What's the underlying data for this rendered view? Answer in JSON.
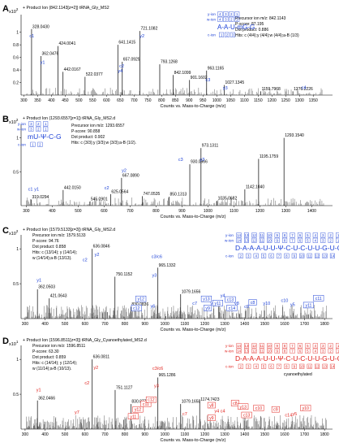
{
  "chart_data": [
    {
      "type": "bar",
      "panel_label": "A",
      "exponent": "x10",
      "exponent_power": "2",
      "title": "+ Product Ion (842.1143[z=2]) tRNA_Gly_MS2",
      "xlabel": "Counts vs. Mass-to-Charge (m/z)",
      "ylabel": "",
      "xlim": [
        290,
        1420
      ],
      "ylim": [
        0,
        1.28
      ],
      "yticks": [
        0.2,
        0.4,
        0.6,
        0.8,
        1.0
      ],
      "xticks": [
        300,
        350,
        400,
        450,
        500,
        550,
        600,
        650,
        700,
        750,
        800,
        850,
        900,
        950,
        1000,
        1050,
        1100,
        1150,
        1200,
        1250,
        1300,
        1350
      ],
      "tick_color": "#000",
      "peaks": [
        {
          "mz": 328.043,
          "y": 1.05,
          "label": "328.0430"
        },
        {
          "mz": 362.0476,
          "y": 0.62,
          "label": "362.0476"
        },
        {
          "mz": 424.0041,
          "y": 0.78,
          "label": "424.0041"
        },
        {
          "mz": 442.0167,
          "y": 0.37,
          "label": "442.0167"
        },
        {
          "mz": 522.0377,
          "y": 0.29,
          "label": "522.0377"
        },
        {
          "mz": 641.1415,
          "y": 0.8,
          "label": "641.1415"
        },
        {
          "mz": 657.0925,
          "y": 0.53,
          "label": "657.0925"
        },
        {
          "mz": 721.1082,
          "y": 1.02,
          "label": "721.1082"
        },
        {
          "mz": 793.1268,
          "y": 0.49,
          "label": "793.1268"
        },
        {
          "mz": 842.1099,
          "y": 0.32,
          "label": "842.1099"
        },
        {
          "mz": 901.1602,
          "y": 0.24,
          "label": "901.1602"
        },
        {
          "mz": 963.1165,
          "y": 0.39,
          "label": "963.1165"
        },
        {
          "mz": 1027.1345,
          "y": 0.16,
          "label": "1027.1345"
        },
        {
          "mz": 1159.7968,
          "y": 0.06,
          "label": "1159.7968"
        },
        {
          "mz": 1276.2226,
          "y": 0.06,
          "label": "1276.2226"
        }
      ],
      "ion_labels": [
        {
          "mz": 329,
          "y": 0.92,
          "label": "c1"
        },
        {
          "mz": 368,
          "y": 0.5,
          "label": "y1"
        },
        {
          "mz": 655,
          "y": 0.44,
          "label": "c2"
        },
        {
          "mz": 650,
          "y": 0.36,
          "label": "y4"
        },
        {
          "mz": 729,
          "y": 0.92,
          "label": "y2"
        },
        {
          "mz": 968,
          "y": 0.22,
          "label": "c3"
        },
        {
          "mz": 1031,
          "y": 0.09,
          "label": "y3"
        },
        {
          "mz": 1316,
          "y": 0.1,
          "label": "c4"
        }
      ],
      "info": [
        "Precursor ion m/z: 842.1143",
        "P-score: 87.195",
        "Dot product: 0.886",
        "Hits: c (4/4);y (4/4);w (4/4);a-B (1/3)"
      ],
      "sequence": {
        "rows": [
          {
            "label": "y-ion",
            "values": [
              "4",
              "3",
              "2",
              "1"
            ]
          },
          {
            "label": "w-ion",
            "values": [
              "4",
              "3",
              "2",
              "1"
            ]
          },
          {
            "label": "c-ion",
            "values": [
              "1",
              "2",
              "3"
            ]
          }
        ],
        "residues": "A-A-U-m G-G"
      }
    },
    {
      "type": "bar",
      "panel_label": "B",
      "exponent": "x10",
      "exponent_power": "2",
      "title": "+ Product Ion (1293.6557[z=1]) tRNA_Gly_MS2.d",
      "xlabel": "Counts vs. Mass-to-Charge (m/z)",
      "ylabel": "",
      "xlim": [
        280,
        1480
      ],
      "ylim": [
        0,
        1.2
      ],
      "yticks": [
        0.5,
        1
      ],
      "xticks": [
        300,
        400,
        500,
        600,
        700,
        800,
        900,
        1000,
        1100,
        1200,
        1300,
        1400
      ],
      "tick_color": "#000",
      "peaks": [
        {
          "mz": 319.0294,
          "y": 0.09,
          "label": "319.0294"
        },
        {
          "mz": 442.015,
          "y": 0.23,
          "label": "442.0150"
        },
        {
          "mz": 545.0901,
          "y": 0.06,
          "label": "545.0901"
        },
        {
          "mz": 625.0564,
          "y": 0.17,
          "label": "625.0564"
        },
        {
          "mz": 667.089,
          "y": 0.41,
          "label": "667.0890"
        },
        {
          "mz": 747.0535,
          "y": 0.14,
          "label": "747.0535"
        },
        {
          "mz": 850.1313,
          "y": 0.13,
          "label": "850.1313"
        },
        {
          "mz": 930.0966,
          "y": 0.61,
          "label": "930.0966"
        },
        {
          "mz": 973.1311,
          "y": 0.85,
          "label": "973.1311"
        },
        {
          "mz": 1035.0682,
          "y": 0.07,
          "label": "1035.0682"
        },
        {
          "mz": 1142.104,
          "y": 0.24,
          "label": "1142.1040"
        },
        {
          "mz": 1195.1759,
          "y": 0.69,
          "label": "1195.1759"
        },
        {
          "mz": 1293.154,
          "y": 1.0,
          "label": "1293.1540"
        }
      ],
      "ion_labels": [
        {
          "mz": 316,
          "y": 0.22,
          "label": "c1"
        },
        {
          "mz": 340,
          "y": 0.22,
          "label": "y1"
        },
        {
          "mz": 610,
          "y": 0.24,
          "label": "c2"
        },
        {
          "mz": 677,
          "y": 0.5,
          "label": "y2"
        },
        {
          "mz": 895,
          "y": 0.66,
          "label": "c3"
        },
        {
          "mz": 978,
          "y": 0.66,
          "label": "y3"
        }
      ],
      "info": [
        "Precursor ion m/z: 1293.6557",
        "P-score: 90.858",
        "Dot product: 0.902",
        "Hits: c (3/3);y (3/3);w (3/3);a-B (1/2)."
      ],
      "sequence": {
        "rows": [
          {
            "label": "y-ion",
            "values": [
              "3",
              "2",
              "1"
            ]
          },
          {
            "label": "w-ion",
            "values": [
              "3",
              "2",
              "1"
            ]
          },
          {
            "label": "c-ion",
            "values": [
              "1",
              "2"
            ]
          }
        ],
        "residues": "mU-Ψ-C-G"
      }
    },
    {
      "type": "bar",
      "panel_label": "C",
      "exponent": "x10",
      "exponent_power": "2",
      "title": "+ Product Ion (1579.5133[z=3]) tRNA_Gly_MS2.d",
      "xlabel": "Counts vs. Mass-to-Charge (m/z)",
      "ylabel": "",
      "xlim": [
        280,
        1840
      ],
      "ylim": [
        0,
        1.2
      ],
      "yticks": [
        0.5,
        1
      ],
      "xticks": [
        300,
        400,
        500,
        600,
        700,
        800,
        900,
        1000,
        1100,
        1200,
        1300,
        1400,
        1500,
        1600,
        1700,
        1800
      ],
      "tick_color": "#000",
      "peaks": [
        {
          "mz": 362.0503,
          "y": 0.42,
          "label": "362.0503"
        },
        {
          "mz": 421.0643,
          "y": 0.29,
          "label": "421.0643"
        },
        {
          "mz": 636.0846,
          "y": 1.0,
          "label": "636.0846"
        },
        {
          "mz": 750.1152,
          "y": 0.6,
          "label": "750.1152"
        },
        {
          "mz": 830.0836,
          "y": 0.17,
          "label": "830.0836"
        },
        {
          "mz": 965.1332,
          "y": 0.73,
          "label": "965.1332"
        },
        {
          "mz": 1079.1656,
          "y": 0.35,
          "label": "1079.1656"
        }
      ],
      "ion_labels": [
        {
          "mz": 370,
          "y": 0.53,
          "label": "y1"
        },
        {
          "mz": 600,
          "y": 0.82,
          "label": "c2"
        },
        {
          "mz": 660,
          "y": 0.9,
          "label": "y2"
        },
        {
          "mz": 960,
          "y": 0.87,
          "label": "c3/c6"
        },
        {
          "mz": 948,
          "y": 0.6,
          "label": "y3"
        },
        {
          "mz": 1150,
          "y": 0.2,
          "label": "c7"
        },
        {
          "mz": 1240,
          "y": 0.2,
          "label": "y6"
        },
        {
          "mz": 1290,
          "y": 0.31,
          "label": "y4"
        },
        {
          "mz": 1312,
          "y": 0.26,
          "label": "c4"
        },
        {
          "mz": 1360,
          "y": 0.2,
          "label": "y8"
        },
        {
          "mz": 1410,
          "y": 0.15,
          "label": "c9"
        },
        {
          "mz": 1510,
          "y": 0.2,
          "label": "y10"
        },
        {
          "mz": 1600,
          "y": 0.24,
          "label": "c10"
        },
        {
          "mz": 1640,
          "y": 0.18,
          "label": "y5"
        },
        {
          "mz": 940,
          "y": 0.16,
          "label": "y6"
        }
      ],
      "boxed_labels": [
        {
          "mz": 880,
          "y": 0.26,
          "label": "y12"
        },
        {
          "mz": 858,
          "y": 0.13,
          "label": "c12"
        },
        {
          "mz": 1208,
          "y": 0.26,
          "label": "y13"
        },
        {
          "mz": 1215,
          "y": 0.13,
          "label": "y9"
        },
        {
          "mz": 1265,
          "y": 0.2,
          "label": "y11"
        },
        {
          "mz": 1336,
          "y": 0.13,
          "label": "c14"
        },
        {
          "mz": 1328,
          "y": 0.25,
          "label": "c13"
        },
        {
          "mz": 1440,
          "y": 0.21,
          "label": "c8"
        },
        {
          "mz": 1720,
          "y": 0.17,
          "label": "y11"
        },
        {
          "mz": 1770,
          "y": 0.27,
          "label": "c11"
        }
      ],
      "info": [
        "Precursor ion m/z: 1579.5133",
        "P-score: 94.76",
        "Dot product: 0.858",
        "Hits: c (13/14); y (14/14);",
        "w (14/14);a-B (13/13)."
      ],
      "sequence": {
        "rows": [
          {
            "label": "y-ion",
            "values": [
              "14",
              "13",
              "12",
              "11",
              "10",
              "9",
              "8",
              "7",
              "6",
              "5",
              "4",
              "3",
              "2",
              "1"
            ]
          },
          {
            "label": "w-ion",
            "values": [
              "14",
              "13",
              "12",
              "11",
              "10",
              "9",
              "8",
              "7",
              "6",
              "5",
              "4",
              "3",
              "2",
              "1"
            ]
          },
          {
            "label": "c-ion",
            "values": [
              "2",
              "3",
              "4",
              "5",
              "6",
              "7",
              "8",
              "9",
              "10",
              "11",
              "12",
              "13",
              "14"
            ]
          }
        ],
        "residues": "D-A-A-A-U-U-Ψ-C-U-C-U-U-G-U-G"
      }
    },
    {
      "type": "bar",
      "panel_label": "D",
      "exponent": "x10",
      "exponent_power": "1",
      "title": "+ Product Ion (1596.8511[z=3]) tRNA_Gly_Cyanoethylated_MS2.d",
      "xlabel": "Counts vs. Mass-to-Charge (m/z)",
      "ylabel": "",
      "xlim": [
        280,
        1840
      ],
      "ylim": [
        0,
        1.2
      ],
      "yticks": [
        0.5,
        1
      ],
      "xticks": [
        300,
        400,
        500,
        600,
        700,
        800,
        900,
        1000,
        1100,
        1200,
        1300,
        1400,
        1500,
        1600,
        1700,
        1800
      ],
      "tick_color": "#000",
      "peaks": [
        {
          "mz": 362.0466,
          "y": 0.41,
          "label": "362.0466"
        },
        {
          "mz": 636.0811,
          "y": 1.0,
          "label": "636.0811"
        },
        {
          "mz": 751.1127,
          "y": 0.56,
          "label": "751.1127"
        },
        {
          "mz": 830.0774,
          "y": 0.36,
          "label": "830.0774"
        },
        {
          "mz": 965.1286,
          "y": 0.74,
          "label": "965.1286"
        },
        {
          "mz": 1079.1658,
          "y": 0.36,
          "label": "1079.1658"
        },
        {
          "mz": 1174.7423,
          "y": 0.39,
          "label": "1174.7423"
        }
      ],
      "ion_labels": [
        {
          "mz": 368,
          "y": 0.54,
          "label": "y1"
        },
        {
          "mz": 560,
          "y": 0.22,
          "label": "y7"
        },
        {
          "mz": 610,
          "y": 0.64,
          "label": "c2"
        },
        {
          "mz": 655,
          "y": 0.86,
          "label": "y2"
        },
        {
          "mz": 965,
          "y": 0.85,
          "label": "c3/c6"
        },
        {
          "mz": 958,
          "y": 0.6,
          "label": "y3"
        },
        {
          "mz": 1100,
          "y": 0.2,
          "label": "c7"
        },
        {
          "mz": 1260,
          "y": 0.24,
          "label": "y4"
        },
        {
          "mz": 1290,
          "y": 0.24,
          "label": "c4"
        },
        {
          "mz": 1620,
          "y": 0.18,
          "label": "c14"
        },
        {
          "mz": 1650,
          "y": 0.2,
          "label": "y5"
        }
      ],
      "boxed_labels": [
        {
          "mz": 905,
          "y": 0.34,
          "label": "c11"
        },
        {
          "mz": 932,
          "y": 0.4,
          "label": "c12"
        },
        {
          "mz": 865,
          "y": 0.26,
          "label": "y12"
        },
        {
          "mz": 842,
          "y": 0.16,
          "label": "y11"
        },
        {
          "mz": 1234,
          "y": 0.32,
          "label": "y8"
        },
        {
          "mz": 1234,
          "y": 0.14,
          "label": "y9"
        },
        {
          "mz": 1352,
          "y": 0.35,
          "label": "c8"
        },
        {
          "mz": 1392,
          "y": 0.3,
          "label": "y13"
        },
        {
          "mz": 1410,
          "y": 0.18,
          "label": "c13"
        },
        {
          "mz": 1470,
          "y": 0.28,
          "label": "c10"
        },
        {
          "mz": 1555,
          "y": 0.26,
          "label": "c9"
        },
        {
          "mz": 1705,
          "y": 0.28,
          "label": "y10"
        }
      ],
      "info": [
        "Precursor ion m/z: 1596.8511",
        "P-score: 63.30",
        "Dot product: 0.859",
        "Hits: c (14/14); y (12/14);",
        "w (11/14);a-B (10/13)."
      ],
      "sequence": {
        "rows": [
          {
            "label": "y-ion",
            "values": [
              "14",
              "13",
              "12",
              "11",
              "10",
              "9",
              "8",
              "7",
              "6",
              "5",
              "4",
              "3",
              "2",
              "1"
            ]
          },
          {
            "label": "w-ion",
            "values": [
              "14",
              "13",
              "12",
              "11",
              "10",
              "9",
              "8",
              "7",
              "6",
              "5",
              "4",
              "3",
              "2",
              "1"
            ]
          },
          {
            "label": "c-ion",
            "values": [
              "2",
              "3",
              "4",
              "5",
              "6",
              "7",
              "8",
              "9",
              "10",
              "11",
              "12",
              "13",
              "14"
            ]
          }
        ],
        "residues": "D-A-A-A-U-U-Ψ-C-U-C-U-U-G-U-G",
        "note": "cyanoethylated"
      }
    }
  ],
  "colors": {
    "peak": "#222222",
    "noise": "#555555",
    "ion_blue": "#1a3fd6",
    "ion_red": "#e0201b",
    "text": "#000000"
  }
}
